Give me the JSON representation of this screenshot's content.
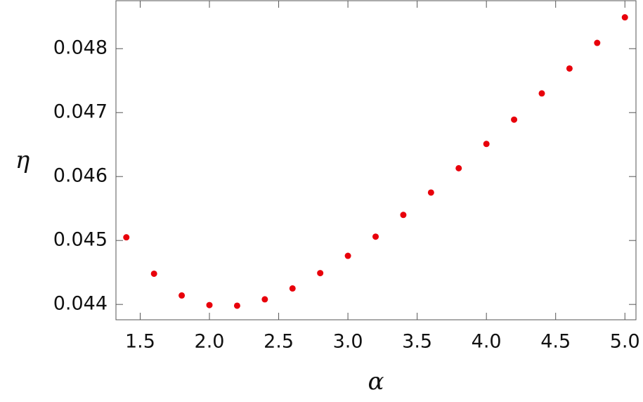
{
  "chart_data": {
    "type": "scatter",
    "xlabel": "α",
    "ylabel": "η",
    "series": [
      {
        "color": "#e8000b",
        "x": [
          1.4,
          1.6,
          1.8,
          2.0,
          2.2,
          2.4,
          2.6,
          2.8,
          3.0,
          3.2,
          3.4,
          3.6,
          3.8,
          4.0,
          4.2,
          4.4,
          4.6,
          4.8,
          5.0
        ],
        "values": [
          0.04505,
          0.04448,
          0.04414,
          0.04399,
          0.04398,
          0.04408,
          0.04425,
          0.04449,
          0.04476,
          0.04506,
          0.0454,
          0.04575,
          0.04613,
          0.04651,
          0.04689,
          0.0473,
          0.04769,
          0.04809,
          0.04849
        ]
      }
    ],
    "xlim": [
      1.325,
      5.08
    ],
    "ylim": [
      0.04376,
      0.04875
    ],
    "xticks": [
      {
        "value": 1.5,
        "label": "1.5"
      },
      {
        "value": 2,
        "label": "2.0"
      },
      {
        "value": 2.5,
        "label": "2.5"
      },
      {
        "value": 3,
        "label": "3.0"
      },
      {
        "value": 3.5,
        "label": "3.5"
      },
      {
        "value": 4,
        "label": "4.0"
      },
      {
        "value": 4.5,
        "label": "4.5"
      },
      {
        "value": 5,
        "label": "5.0"
      }
    ],
    "yticks": [
      0.044,
      0.045,
      0.046,
      0.047,
      0.048
    ]
  }
}
